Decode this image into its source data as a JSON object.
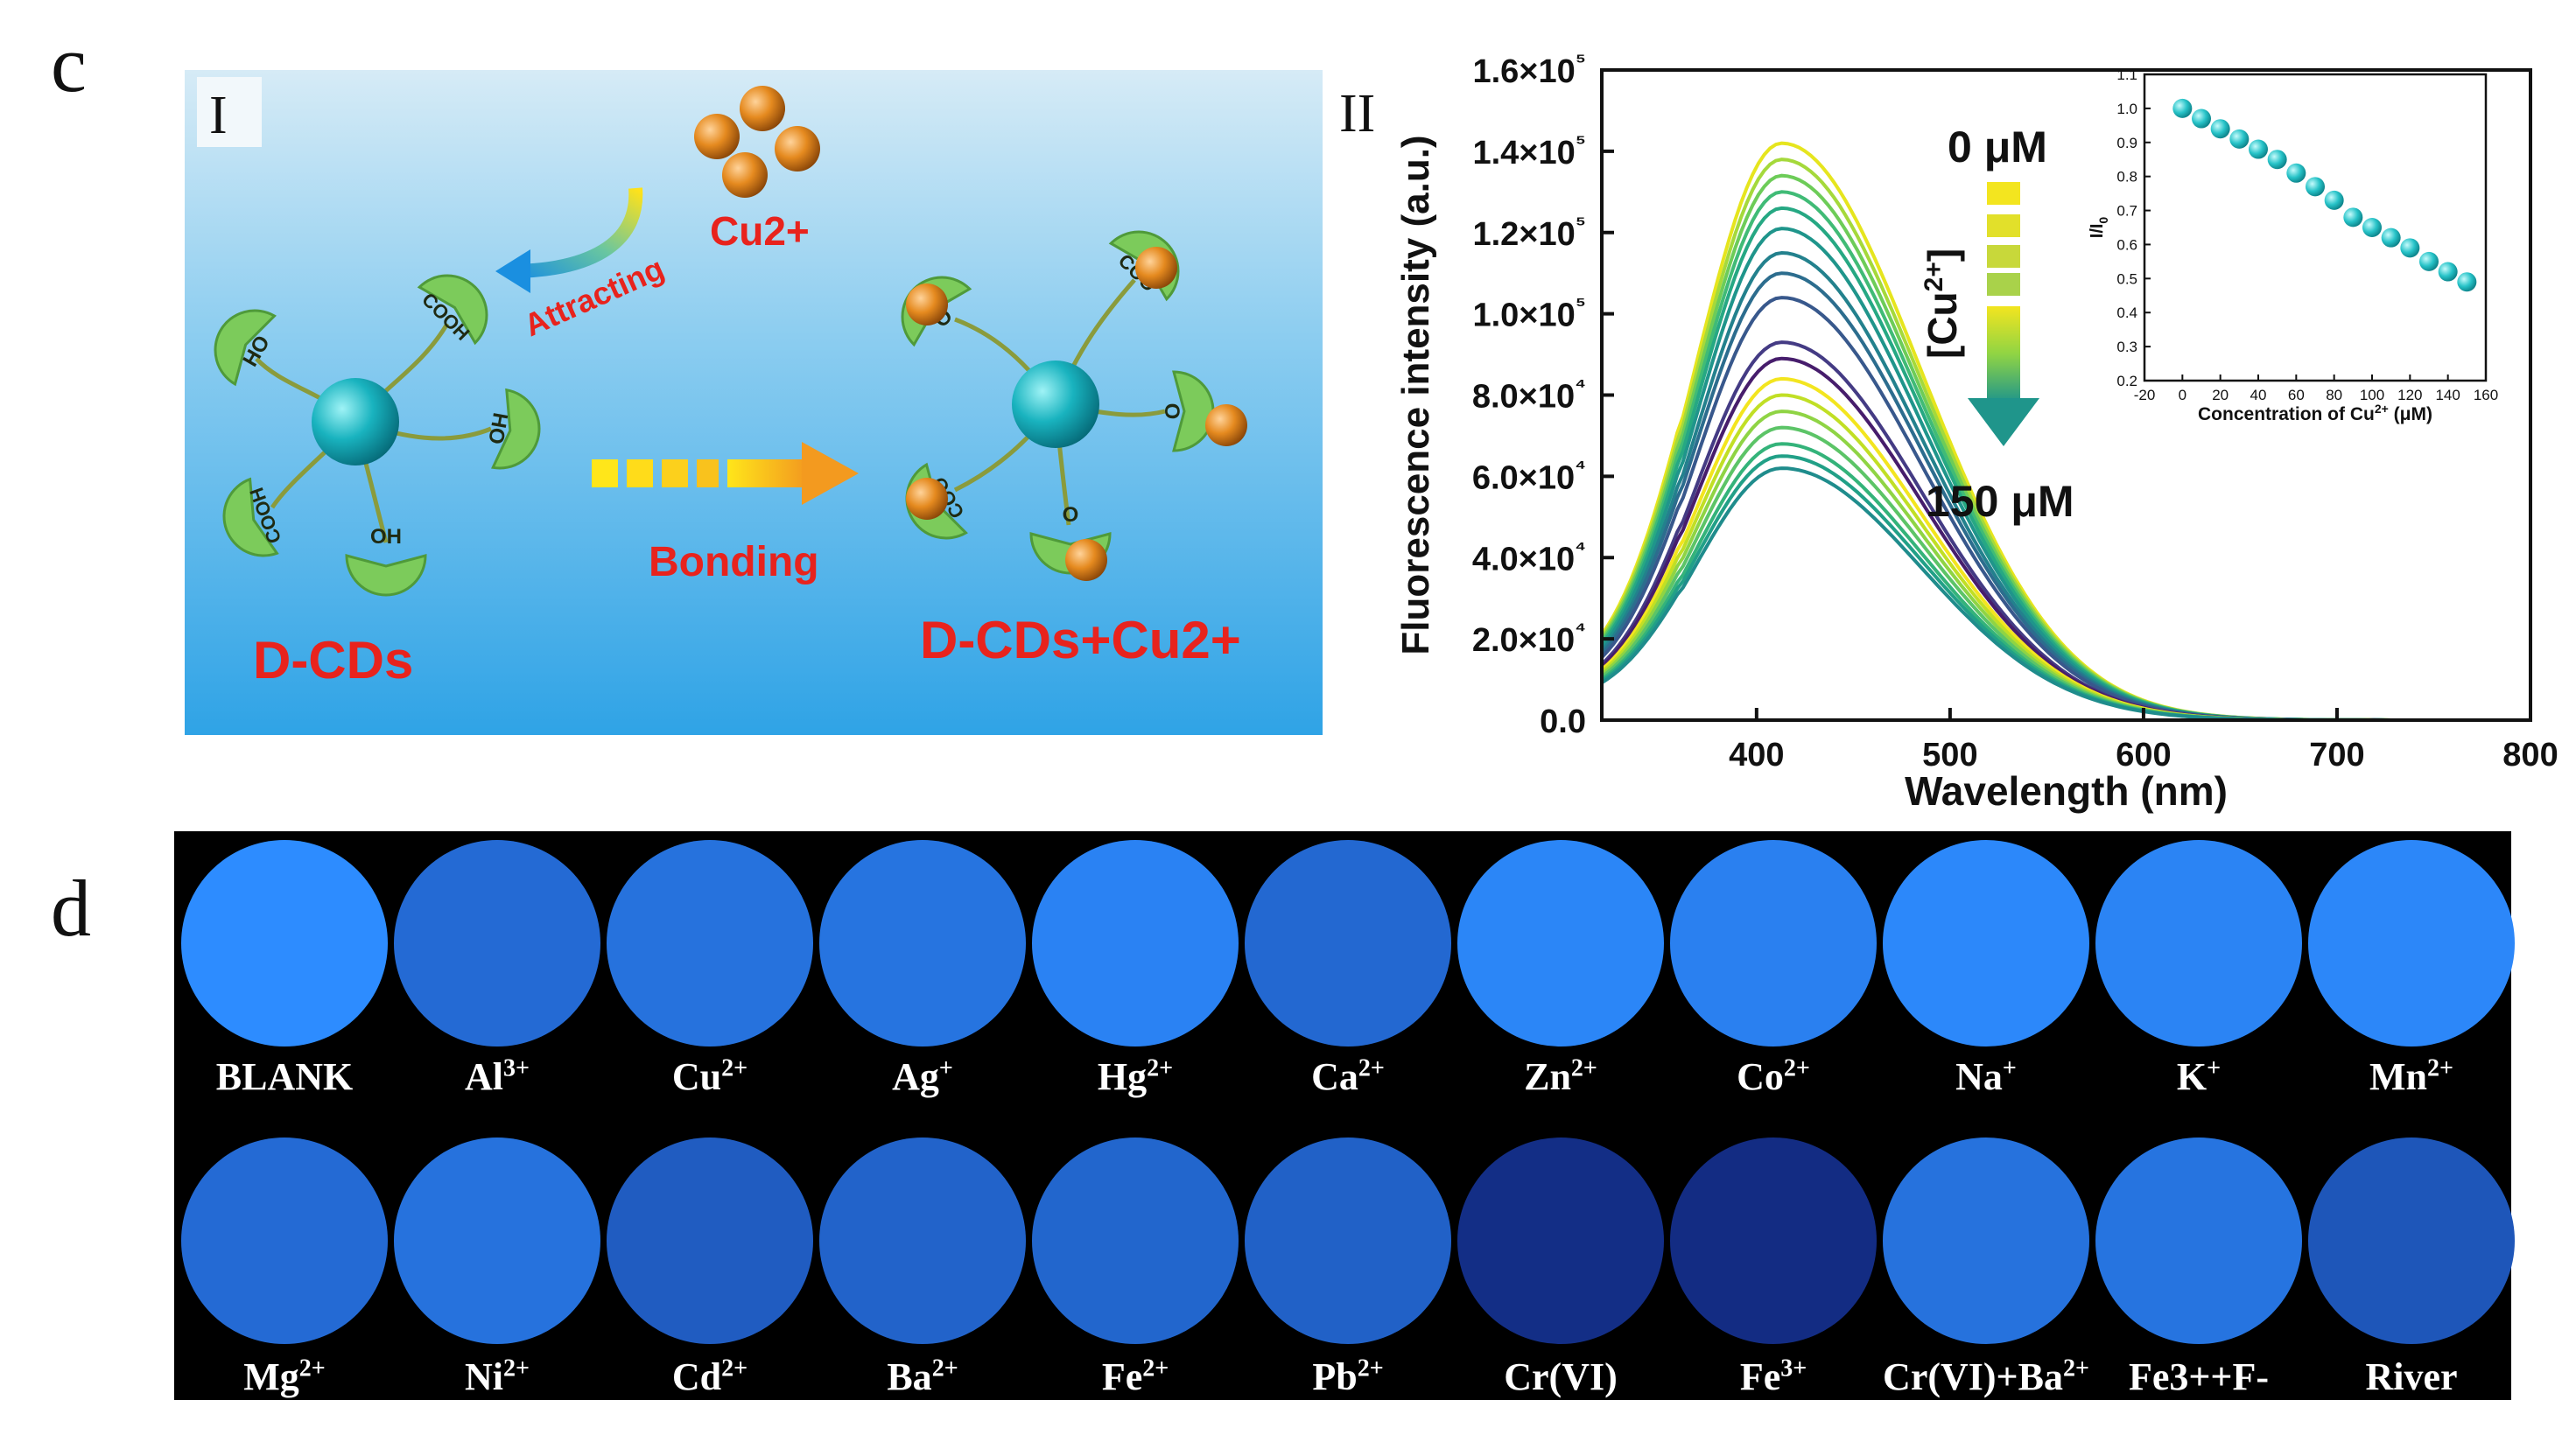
{
  "panel_c": {
    "letter": "c",
    "part_I": {
      "roman": "I",
      "ion_label": "Cu2+",
      "attracting_label": "Attracting",
      "bonding_label": "Bonding",
      "left_label": "D-CDs",
      "right_label": "D-CDs+Cu2+",
      "groups_left": [
        "HO",
        "COOH",
        "HO",
        "COOH",
        "OH"
      ],
      "groups_right": [
        "O",
        "COO",
        "O",
        "COO",
        "O"
      ],
      "colors": {
        "background_top": "#cfe6f3",
        "background_bottom": "#35a7e6",
        "core": "#1fb7c2",
        "ion": "#e08a1e",
        "group": "#7ccb5b",
        "label_red": "#e8231d"
      }
    },
    "part_II": {
      "roman": "II"
    }
  },
  "chart_data": [
    {
      "type": "line",
      "xlabel": "Wavelength (nm)",
      "ylabel": "Fluorescence intensity (a.u.)",
      "xlim": [
        320,
        800
      ],
      "ylim": [
        0,
        160000
      ],
      "xticks": [
        400,
        500,
        600,
        700,
        800
      ],
      "yticks": [
        0,
        20000,
        40000,
        60000,
        80000,
        100000,
        120000,
        140000,
        160000
      ],
      "ytick_labels": [
        "0.0",
        "2.0×10⁴",
        "4.0×10⁴",
        "6.0×10⁴",
        "8.0×10⁴",
        "1.0×10⁵",
        "1.2×10⁵",
        "1.4×10⁵",
        "1.6×10⁵"
      ],
      "peak_wavelength": 413,
      "series": [
        {
          "concentration": 0,
          "peak": 142000,
          "color": "#e6e51e"
        },
        {
          "concentration": 10,
          "peak": 138000,
          "color": "#a5d93b"
        },
        {
          "concentration": 20,
          "peak": 134000,
          "color": "#6dcc58"
        },
        {
          "concentration": 30,
          "peak": 130000,
          "color": "#40bb76"
        },
        {
          "concentration": 40,
          "peak": 126000,
          "color": "#26a883"
        },
        {
          "concentration": 50,
          "peak": 121000,
          "color": "#1f958b"
        },
        {
          "concentration": 60,
          "peak": 115000,
          "color": "#23818d"
        },
        {
          "concentration": 70,
          "peak": 110000,
          "color": "#2c6d8e"
        },
        {
          "concentration": 80,
          "peak": 104000,
          "color": "#38588c"
        },
        {
          "concentration": 90,
          "peak": 93000,
          "color": "#443b84"
        },
        {
          "concentration": 100,
          "peak": 89000,
          "color": "#471d6c"
        },
        {
          "concentration": 110,
          "peak": 84000,
          "color": "#f3e51f"
        },
        {
          "concentration": 120,
          "peak": 80000,
          "color": "#c1df25"
        },
        {
          "concentration": 125,
          "peak": 76000,
          "color": "#8fd444"
        },
        {
          "concentration": 130,
          "peak": 72000,
          "color": "#5cc467"
        },
        {
          "concentration": 140,
          "peak": 68000,
          "color": "#34b37a"
        },
        {
          "concentration": 145,
          "peak": 65000,
          "color": "#21a087"
        },
        {
          "concentration": 150,
          "peak": 62000,
          "color": "#1f8c8c"
        }
      ],
      "annotations": {
        "top": "0 μM",
        "bottom": "150 μM",
        "arrow_label": "[Cu2+]"
      },
      "grid": false
    },
    {
      "type": "scatter",
      "xlabel": "Concentration of Cu2+ (μM)",
      "ylabel": "I/I0",
      "xlim": [
        -20,
        160
      ],
      "ylim": [
        0.2,
        1.1
      ],
      "xticks": [
        -20,
        0,
        20,
        40,
        60,
        80,
        100,
        120,
        140,
        160
      ],
      "yticks": [
        0.2,
        0.3,
        0.4,
        0.5,
        0.6,
        0.7,
        0.8,
        0.9,
        1.0,
        1.1
      ],
      "x": [
        0,
        10,
        20,
        30,
        40,
        50,
        60,
        70,
        80,
        90,
        100,
        110,
        120,
        130,
        140,
        150
      ],
      "y": [
        1.0,
        0.97,
        0.94,
        0.91,
        0.88,
        0.85,
        0.81,
        0.77,
        0.73,
        0.68,
        0.65,
        0.62,
        0.59,
        0.55,
        0.52,
        0.49
      ],
      "marker_color": "#27c3c8",
      "grid": false
    }
  ],
  "panel_d": {
    "letter": "d",
    "row1": [
      {
        "base": "BLANK",
        "sup": ""
      },
      {
        "base": "Al",
        "sup": "3+"
      },
      {
        "base": "Cu",
        "sup": "2+"
      },
      {
        "base": "Ag",
        "sup": "+"
      },
      {
        "base": "Hg",
        "sup": "2+"
      },
      {
        "base": "Ca",
        "sup": "2+"
      },
      {
        "base": "Zn",
        "sup": "2+"
      },
      {
        "base": "Co",
        "sup": "2+"
      },
      {
        "base": "Na",
        "sup": "+"
      },
      {
        "base": "K",
        "sup": "+"
      },
      {
        "base": "Mn",
        "sup": "2+"
      }
    ],
    "row2": [
      {
        "base": "Mg",
        "sup": "2+"
      },
      {
        "base": "Ni",
        "sup": "2+"
      },
      {
        "base": "Cd",
        "sup": "2+"
      },
      {
        "base": "Ba",
        "sup": "2+"
      },
      {
        "base": "Fe",
        "sup": "2+"
      },
      {
        "base": "Pb",
        "sup": "2+"
      },
      {
        "base": "Cr(VI)",
        "sup": ""
      },
      {
        "base": "Fe",
        "sup": "3+"
      },
      {
        "base": "Cr(VI)+Ba",
        "sup": "2+"
      },
      {
        "base": "Fe3++F-",
        "sup": ""
      },
      {
        "base": "River",
        "sup": ""
      }
    ],
    "row1_brightness": [
      1.0,
      0.72,
      0.78,
      0.8,
      0.92,
      0.7,
      0.95,
      0.9,
      0.97,
      0.93,
      0.96
    ],
    "row2_brightness": [
      0.72,
      0.78,
      0.6,
      0.66,
      0.68,
      0.64,
      0.22,
      0.2,
      0.78,
      0.8,
      0.55
    ],
    "colors": {
      "well_bright": "#2f8cff",
      "well_dark": "#0b1a5e",
      "background": "#000000"
    }
  }
}
